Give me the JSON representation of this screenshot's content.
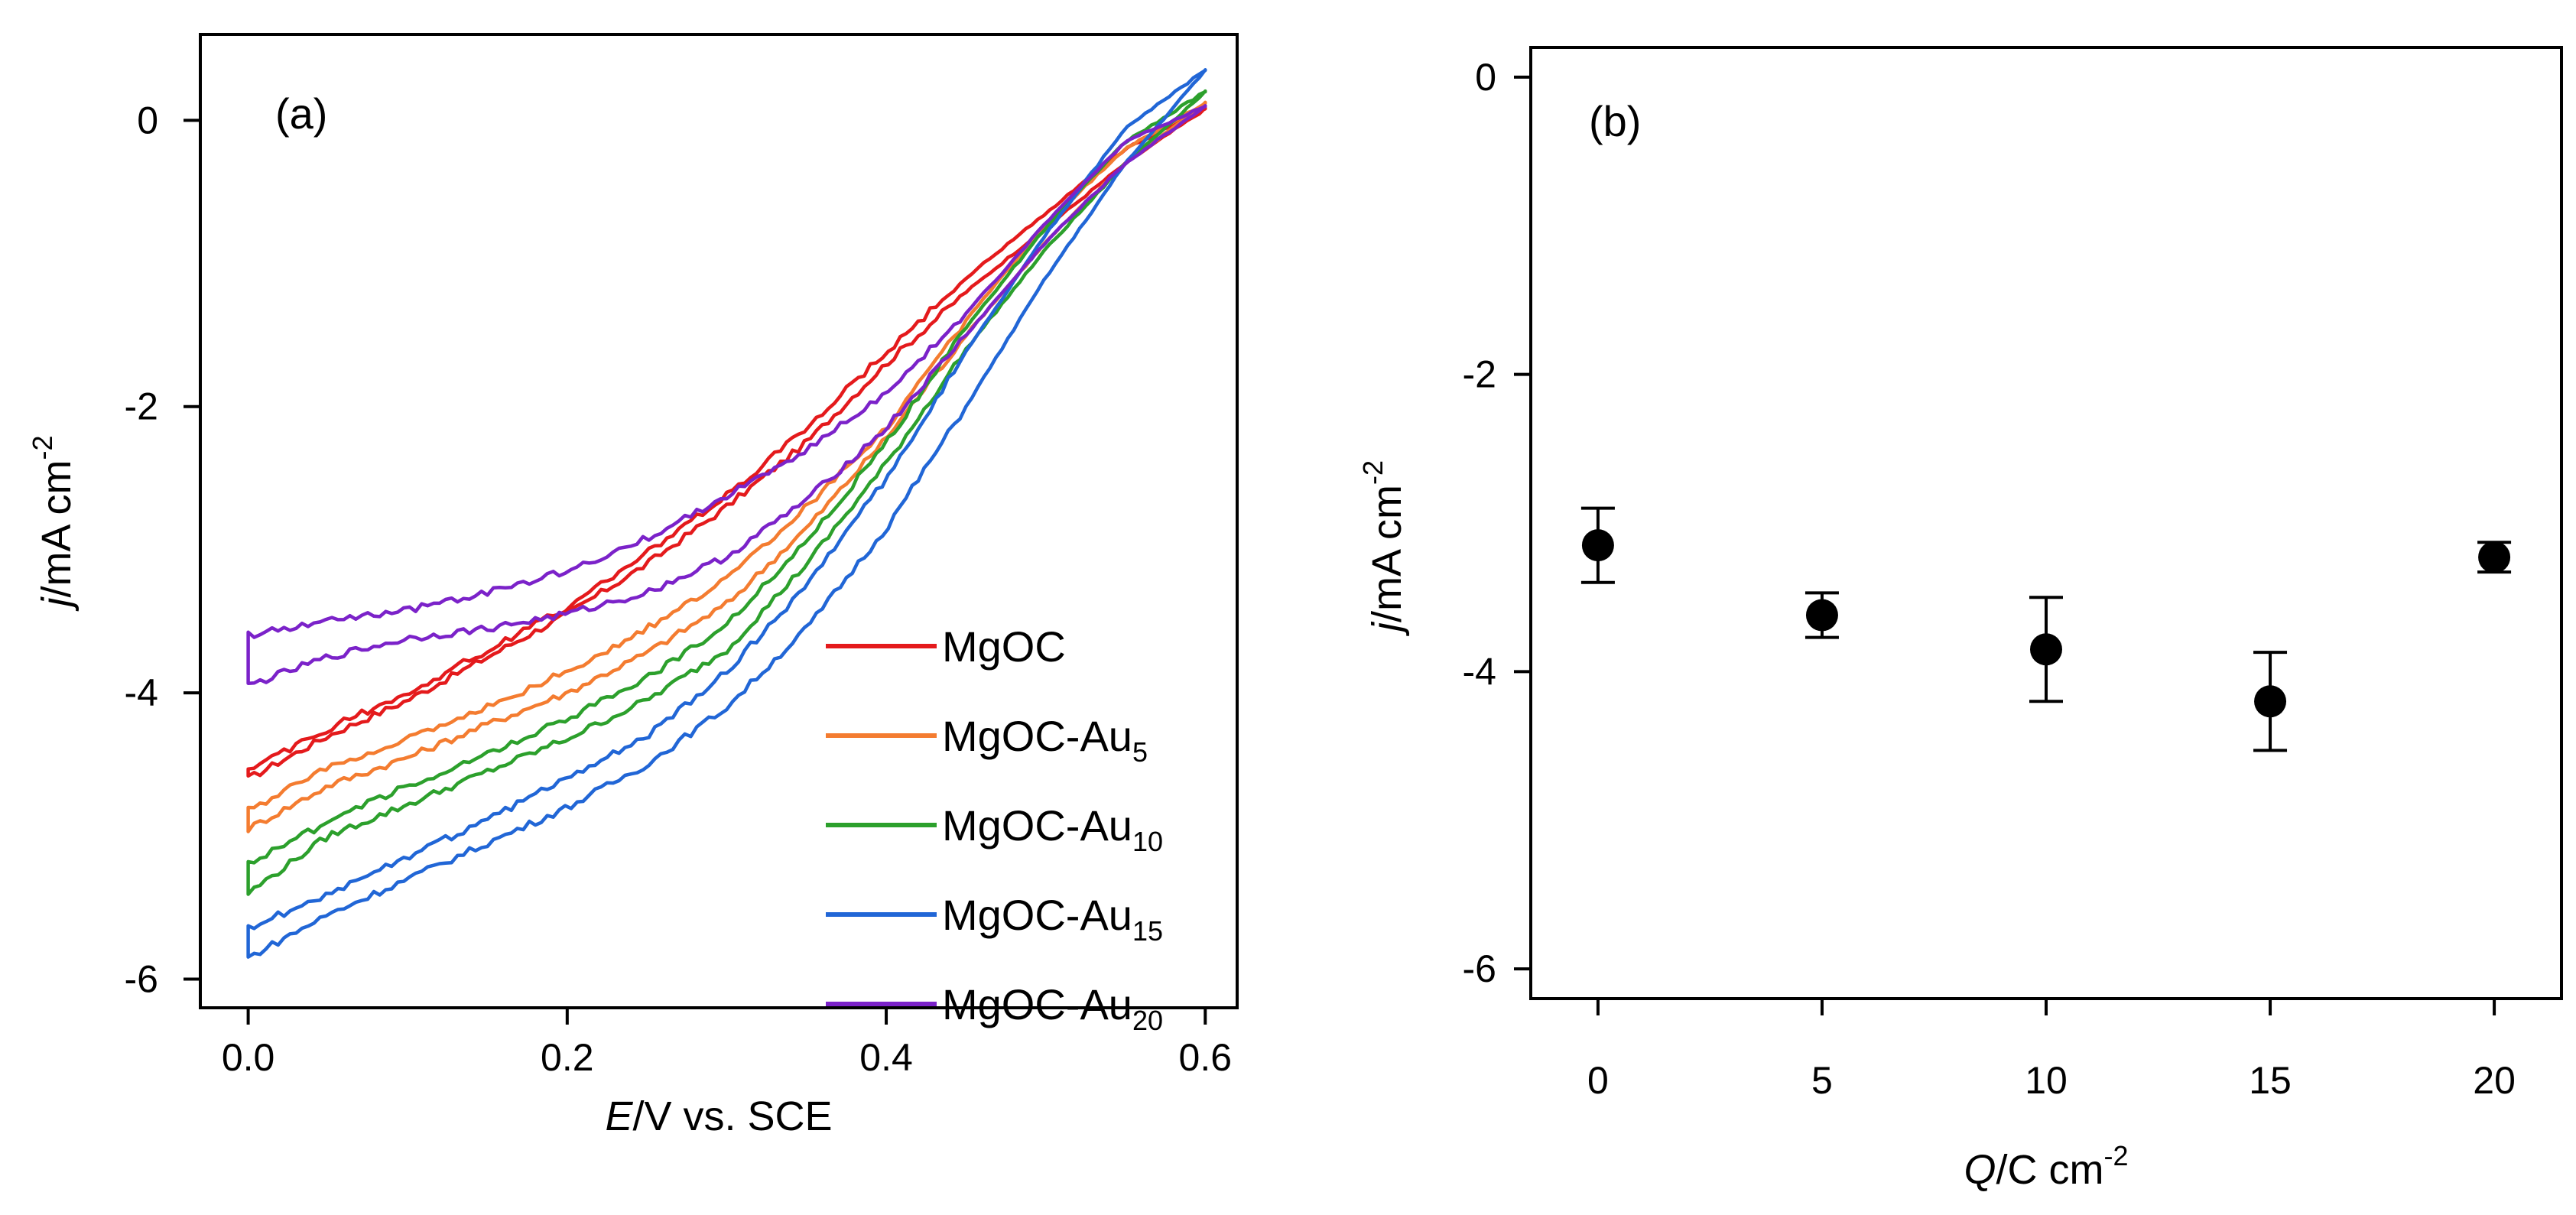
{
  "chart_data": [
    {
      "panel": "(a)",
      "type": "line",
      "xlabel_italic": "E",
      "xlabel_rest": "/V vs. SCE",
      "ylabel_italic": "j",
      "ylabel_rest": "/mA cm",
      "ylabel_exp": "-2",
      "xlim": [
        -0.03,
        0.62
      ],
      "ylim": [
        -6.2,
        0.6
      ],
      "xticks": [
        0.0,
        0.2,
        0.4,
        0.6
      ],
      "xtick_labels": [
        "0.0",
        "0.2",
        "0.4",
        "0.6"
      ],
      "yticks": [
        0,
        -2,
        -4,
        -6
      ],
      "ytick_labels": [
        "0",
        "-2",
        "-4",
        "-6"
      ],
      "series": [
        {
          "name": "MgOC",
          "sub": "",
          "color": "#e41a1c",
          "x": [
            0.0,
            0.05,
            0.1,
            0.15,
            0.2,
            0.25,
            0.3,
            0.35,
            0.4,
            0.45,
            0.5,
            0.55,
            0.6
          ],
          "fwd": [
            -4.6,
            -4.3,
            -4.05,
            -3.75,
            -3.45,
            -3.1,
            -2.7,
            -2.25,
            -1.7,
            -1.2,
            -0.75,
            -0.3,
            0.08
          ],
          "bwd": [
            -4.55,
            -4.25,
            -4.0,
            -3.7,
            -3.4,
            -3.02,
            -2.62,
            -2.15,
            -1.62,
            -1.1,
            -0.65,
            -0.2,
            0.08
          ]
        },
        {
          "name": "MgOC-Au",
          "sub": "5",
          "color": "#f47c30",
          "x": [
            0.0,
            0.05,
            0.1,
            0.15,
            0.2,
            0.25,
            0.3,
            0.35,
            0.4,
            0.45,
            0.5,
            0.55,
            0.6
          ],
          "fwd": [
            -4.95,
            -4.65,
            -4.45,
            -4.22,
            -4.0,
            -3.72,
            -3.38,
            -2.85,
            -2.22,
            -1.5,
            -0.85,
            -0.3,
            0.12
          ],
          "bwd": [
            -4.82,
            -4.52,
            -4.32,
            -4.1,
            -3.85,
            -3.55,
            -3.2,
            -2.7,
            -2.15,
            -1.4,
            -0.72,
            -0.2,
            0.12
          ]
        },
        {
          "name": "MgOC-Au",
          "sub": "10",
          "color": "#2ca02c",
          "x": [
            0.0,
            0.05,
            0.1,
            0.15,
            0.2,
            0.25,
            0.3,
            0.35,
            0.4,
            0.45,
            0.5,
            0.55,
            0.6
          ],
          "fwd": [
            -5.4,
            -5.0,
            -4.78,
            -4.55,
            -4.32,
            -4.05,
            -3.7,
            -3.1,
            -2.4,
            -1.6,
            -0.9,
            -0.3,
            0.2
          ],
          "bwd": [
            -5.2,
            -4.9,
            -4.65,
            -4.42,
            -4.18,
            -3.9,
            -3.52,
            -2.95,
            -2.25,
            -1.45,
            -0.75,
            -0.15,
            0.2
          ]
        },
        {
          "name": "MgOC-Au",
          "sub": "15",
          "color": "#2166d6",
          "x": [
            0.0,
            0.05,
            0.1,
            0.15,
            0.2,
            0.25,
            0.3,
            0.35,
            0.4,
            0.45,
            0.5,
            0.55,
            0.6
          ],
          "fwd": [
            -5.85,
            -5.55,
            -5.3,
            -5.05,
            -4.8,
            -4.5,
            -4.1,
            -3.55,
            -2.85,
            -2.0,
            -1.1,
            -0.3,
            0.35
          ],
          "bwd": [
            -5.65,
            -5.4,
            -5.15,
            -4.88,
            -4.6,
            -4.3,
            -3.85,
            -3.25,
            -2.5,
            -1.62,
            -0.8,
            -0.05,
            0.35
          ]
        },
        {
          "name": "MgOC-Au",
          "sub": "20",
          "color": "#7b22c9",
          "x": [
            0.0,
            0.05,
            0.1,
            0.15,
            0.2,
            0.25,
            0.3,
            0.35,
            0.4,
            0.45,
            0.5,
            0.55,
            0.6
          ],
          "fwd": [
            -3.95,
            -3.75,
            -3.62,
            -3.55,
            -3.45,
            -3.3,
            -3.05,
            -2.65,
            -2.15,
            -1.5,
            -0.85,
            -0.3,
            0.1
          ],
          "bwd": [
            -3.6,
            -3.5,
            -3.42,
            -3.3,
            -3.15,
            -2.92,
            -2.62,
            -2.3,
            -1.9,
            -1.35,
            -0.72,
            -0.15,
            0.1
          ]
        }
      ]
    },
    {
      "panel": "(b)",
      "type": "scatter",
      "xlabel_italic": "Q",
      "xlabel_rest": "/C cm",
      "xlabel_exp": "-2",
      "ylabel_italic": "j",
      "ylabel_rest": "/mA cm",
      "ylabel_exp": "-2",
      "xlim": [
        -1.5,
        21.5
      ],
      "ylim": [
        -6.2,
        0.2
      ],
      "xticks": [
        0,
        5,
        10,
        15,
        20
      ],
      "xtick_labels": [
        "0",
        "5",
        "10",
        "15",
        "20"
      ],
      "yticks": [
        0,
        -2,
        -4,
        -6
      ],
      "ytick_labels": [
        "0",
        "-2",
        "-4",
        "-6"
      ],
      "x": [
        0,
        5,
        10,
        15,
        20
      ],
      "y": [
        -3.15,
        -3.62,
        -3.85,
        -4.2,
        -3.23
      ],
      "err": [
        0.25,
        0.15,
        0.35,
        0.33,
        0.1
      ]
    }
  ]
}
